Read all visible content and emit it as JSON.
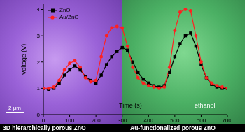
{
  "chart_data": {
    "type": "line",
    "x_label": "Time (s)",
    "y_label": "Voltage (V)",
    "x": [
      0,
      20,
      40,
      60,
      80,
      100,
      120,
      140,
      160,
      180,
      200,
      220,
      240,
      260,
      280,
      300,
      320,
      340,
      360,
      380,
      400,
      420,
      440,
      460,
      480,
      500,
      520,
      540,
      560,
      580,
      600,
      620,
      640,
      660,
      680,
      700
    ],
    "series": [
      {
        "name": "ZnO",
        "color": "#000000",
        "marker": "square",
        "values": [
          1.0,
          0.95,
          1.0,
          1.2,
          1.5,
          1.7,
          1.85,
          1.7,
          1.45,
          1.3,
          1.2,
          1.5,
          1.9,
          2.2,
          2.4,
          2.55,
          2.45,
          2.0,
          1.6,
          1.35,
          1.2,
          1.1,
          1.05,
          1.1,
          1.6,
          2.2,
          2.7,
          3.0,
          3.1,
          2.6,
          1.9,
          1.4,
          1.15,
          1.05,
          1.0,
          1.0
        ]
      },
      {
        "name": "Au/ZnO",
        "color": "#ff2020",
        "marker": "circle",
        "values": [
          1.0,
          1.0,
          1.05,
          1.3,
          1.7,
          1.95,
          2.05,
          1.8,
          1.4,
          1.25,
          1.3,
          2.2,
          3.0,
          3.3,
          3.35,
          3.3,
          2.6,
          1.8,
          1.4,
          1.2,
          1.1,
          1.05,
          1.0,
          1.05,
          1.8,
          3.2,
          3.9,
          4.0,
          3.95,
          3.0,
          2.0,
          1.4,
          1.2,
          1.1,
          1.05,
          1.0
        ]
      }
    ],
    "xlim": [
      0,
      700
    ],
    "xticks": [
      0,
      100,
      200,
      300,
      400,
      500,
      600,
      700
    ],
    "ylim": [
      0,
      4.2
    ],
    "yticks": [
      0,
      1,
      2,
      3,
      4
    ],
    "grid": false,
    "legend": "upper left",
    "annotations": [
      "ethanol"
    ]
  },
  "panels": {
    "left_caption": "3D hierarchically porous ZnO",
    "right_caption": "Au-functionalized porous ZnO",
    "scale_bar": "2 μm"
  }
}
